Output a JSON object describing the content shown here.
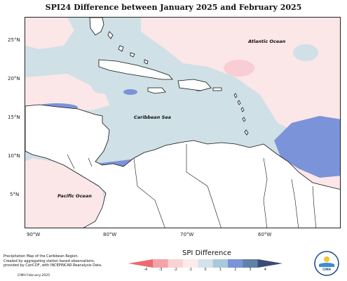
{
  "title": "SPI24 Difference between January 2025 and February 2025",
  "map_labels": {
    "atlantic": "Atlantic Ocean",
    "caribbean": "Caribbean Sea",
    "pacific": "Pacific Ocean"
  },
  "axes": {
    "lat_labels": [
      "25°N",
      "20°N",
      "15°N",
      "10°N",
      "5°N"
    ],
    "lon_labels": [
      "90°W",
      "80°W",
      "70°W",
      "60°W"
    ]
  },
  "legend": {
    "title": "SPI Difference",
    "ticks": [
      "-4",
      "-3",
      "-2",
      "-1",
      "0",
      "1",
      "2",
      "3",
      "4"
    ],
    "colors": [
      "#ec6a70",
      "#f4a4a7",
      "#f9d3d4",
      "#fdeaea",
      "#d4e3ea",
      "#aac8dc",
      "#7b93d8",
      "#5f82a6",
      "#3a4b78"
    ]
  },
  "footer": {
    "credit_lines": [
      "Precipitation Map of the Caribbean Region.",
      "Created by aggregating station based observations,",
      "provided by CariCOF, with INCEPINCAR Reanalysis Data."
    ],
    "date": "CIMH February-2025"
  },
  "logo": {
    "text": "CIMH"
  },
  "colors": {
    "neutral_blue": "#cfe0e6",
    "light_pink": "#fbe6e8",
    "pink": "#f8cdd4",
    "medium_blue": "#7b93d8",
    "dark_blue": "#5a73c8",
    "land": "#ffffff",
    "coast": "#111111"
  }
}
